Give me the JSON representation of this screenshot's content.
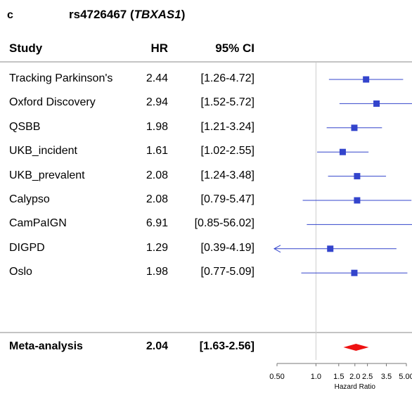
{
  "panel_letter": "c",
  "title": {
    "snp": "rs4726467",
    "gene": "TBXAS1"
  },
  "columns": {
    "study": "Study",
    "hr": "HR",
    "ci": "95% CI"
  },
  "chart_data": {
    "type": "forest",
    "title": "rs4726467 (TBXAS1)",
    "xlabel": "Hazard Ratio",
    "xscale": "log",
    "xlim": [
      0.5,
      5.5
    ],
    "xticks": [
      0.5,
      1.0,
      1.5,
      2.0,
      2.5,
      3.5,
      5.0
    ],
    "xtick_labels": [
      "0.50",
      "1.0",
      "1.5",
      "2.0",
      "2.5",
      "3.5",
      "5.00"
    ],
    "reference_line": 1.0,
    "colors": {
      "point": "#3344cc",
      "meta": "#ee1111",
      "refline": "#cccccc"
    },
    "studies": [
      {
        "name": "Tracking Parkinson's",
        "hr": 2.44,
        "hr_label": "2.44",
        "lower": 1.26,
        "upper": 4.72,
        "ci_label": "[1.26-4.72]"
      },
      {
        "name": "Oxford Discovery",
        "hr": 2.94,
        "hr_label": "2.94",
        "lower": 1.52,
        "upper": 5.72,
        "ci_label": "[1.52-5.72]"
      },
      {
        "name": "QSBB",
        "hr": 1.98,
        "hr_label": "1.98",
        "lower": 1.21,
        "upper": 3.24,
        "ci_label": "[1.21-3.24]"
      },
      {
        "name": "UKB_incident",
        "hr": 1.61,
        "hr_label": "1.61",
        "lower": 1.02,
        "upper": 2.55,
        "ci_label": "[1.02-2.55]"
      },
      {
        "name": "UKB_prevalent",
        "hr": 2.08,
        "hr_label": "2.08",
        "lower": 1.24,
        "upper": 3.48,
        "ci_label": "[1.24-3.48]"
      },
      {
        "name": "Calypso",
        "hr": 2.08,
        "hr_label": "2.08",
        "lower": 0.79,
        "upper": 5.47,
        "ci_label": "[0.79-5.47]"
      },
      {
        "name": "CamPaIGN",
        "hr": 6.91,
        "hr_label": "6.91",
        "lower": 0.85,
        "upper": 56.02,
        "ci_label": "[0.85-56.02]"
      },
      {
        "name": "DIGPD",
        "hr": 1.29,
        "hr_label": "1.29",
        "lower": 0.39,
        "upper": 4.19,
        "ci_label": "[0.39-4.19]"
      },
      {
        "name": "Oslo",
        "hr": 1.98,
        "hr_label": "1.98",
        "lower": 0.77,
        "upper": 5.09,
        "ci_label": "[0.77-5.09]"
      }
    ],
    "meta": {
      "name": "Meta-analysis",
      "hr": 2.04,
      "hr_label": "2.04",
      "lower": 1.63,
      "upper": 2.56,
      "ci_label": "[1.63-2.56]"
    }
  }
}
